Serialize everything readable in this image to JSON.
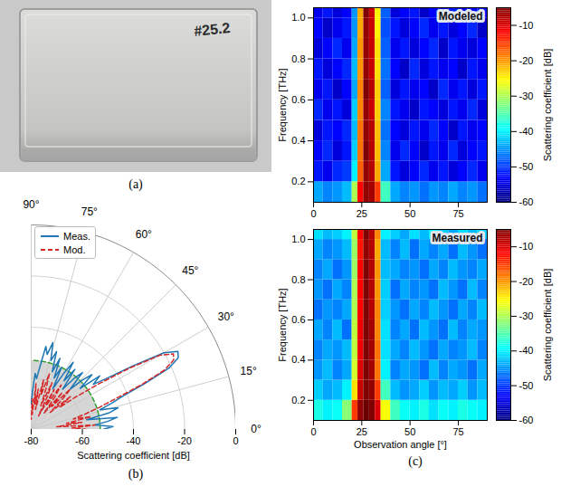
{
  "photo": {
    "label": "#25.2",
    "caption": "(a)"
  },
  "chart_data": [
    {
      "type": "polar",
      "caption": "(b)",
      "xlabel": "Scattering coefficient [dB]",
      "xlim": [
        -80,
        0
      ],
      "xticks": [
        -80,
        -60,
        -40,
        -20,
        0
      ],
      "angle_lim": [
        0,
        90
      ],
      "angle_ticks": [
        {
          "value": 0,
          "label": "0°"
        },
        {
          "value": 15,
          "label": "15°"
        },
        {
          "value": 30,
          "label": "30°"
        },
        {
          "value": 45,
          "label": "45°"
        },
        {
          "value": 60,
          "label": "60°"
        },
        {
          "value": 75,
          "label": "75°"
        },
        {
          "value": 90,
          "label": "90°"
        }
      ],
      "grid": true,
      "legend": "upper left",
      "reference_arc": {
        "value": -53,
        "color": "#2ca02c",
        "line_style": "dashed"
      },
      "angles": [
        0,
        2,
        4,
        6,
        8,
        10,
        12,
        14,
        16,
        18,
        20,
        22,
        24,
        26,
        28,
        30,
        32,
        34,
        36,
        38,
        40,
        42,
        44,
        46,
        48,
        50,
        52,
        54,
        56,
        58,
        60,
        62,
        64,
        66,
        68,
        70,
        72,
        74,
        76,
        78,
        80,
        82,
        84,
        86,
        88,
        90
      ],
      "series": [
        {
          "name": "Meas.",
          "color": "#1f77b4",
          "line_style": "solid",
          "values": [
            -52,
            -48,
            -55,
            -50,
            -46,
            -58,
            -49,
            -45,
            -52,
            -47,
            -42,
            -32,
            -21,
            -16,
            -15,
            -20,
            -33,
            -44,
            -50,
            -46,
            -55,
            -48,
            -52,
            -58,
            -50,
            -54,
            -60,
            -51,
            -57,
            -49,
            -55,
            -62,
            -53,
            -58,
            -50,
            -56,
            -48,
            -52,
            -45,
            -50,
            -47,
            -55,
            -60,
            -58,
            -65,
            -70
          ]
        },
        {
          "name": "Mod.",
          "color": "#d62728",
          "line_style": "dashed",
          "values": [
            -58,
            -64,
            -55,
            -70,
            -60,
            -66,
            -56,
            -63,
            -58,
            -52,
            -45,
            -34,
            -23,
            -18,
            -17,
            -22,
            -35,
            -48,
            -58,
            -66,
            -60,
            -70,
            -63,
            -58,
            -68,
            -61,
            -72,
            -64,
            -59,
            -69,
            -62,
            -74,
            -65,
            -60,
            -70,
            -63,
            -57,
            -66,
            -60,
            -72,
            -64,
            -70,
            -62,
            -74,
            -68,
            -76
          ]
        }
      ]
    },
    {
      "type": "heatmap",
      "title": "Modeled",
      "ylabel": "Frequency [THz]",
      "xlim": [
        0,
        90
      ],
      "xticks": [
        0,
        25,
        50,
        75
      ],
      "ylim": [
        0.1,
        1.05
      ],
      "yticks": [
        0.2,
        0.4,
        0.6,
        0.8,
        {
          "value": 1,
          "label": "1.0"
        }
      ],
      "x_bins": [
        0,
        5,
        10,
        15,
        20,
        23,
        26,
        29,
        32,
        35,
        40,
        45,
        50,
        55,
        60,
        65,
        70,
        75,
        80,
        85,
        90
      ],
      "y_bins": [
        0.1,
        0.2,
        0.3,
        0.4,
        0.5,
        0.6,
        0.7,
        0.8,
        0.9,
        1.0,
        1.05
      ],
      "cells": [
        [
          -44,
          -46,
          -45,
          -43,
          -30,
          -12,
          -6,
          -7,
          -15,
          -36,
          -44,
          -46,
          -45,
          -47,
          -45,
          -46,
          -44,
          -46,
          -45,
          -47
        ],
        [
          -52,
          -54,
          -51,
          -50,
          -40,
          -17,
          -6,
          -8,
          -21,
          -44,
          -52,
          -55,
          -53,
          -51,
          -54,
          -52,
          -55,
          -53,
          -51,
          -54
        ],
        [
          -53,
          -51,
          -55,
          -52,
          -42,
          -18,
          -5,
          -8,
          -22,
          -46,
          -54,
          -51,
          -53,
          -56,
          -52,
          -54,
          -51,
          -55,
          -53,
          -52
        ],
        [
          -55,
          -52,
          -53,
          -51,
          -43,
          -18,
          -6,
          -8,
          -22,
          -47,
          -53,
          -55,
          -52,
          -54,
          -51,
          -53,
          -56,
          -52,
          -54,
          -53
        ],
        [
          -51,
          -54,
          -52,
          -55,
          -42,
          -19,
          -6,
          -9,
          -23,
          -46,
          -52,
          -54,
          -56,
          -52,
          -53,
          -55,
          -52,
          -54,
          -51,
          -55
        ],
        [
          -54,
          -52,
          -56,
          -53,
          -44,
          -19,
          -5,
          -8,
          -23,
          -48,
          -55,
          -52,
          -54,
          -53,
          -56,
          -51,
          -54,
          -52,
          -55,
          -52
        ],
        [
          -52,
          -55,
          -53,
          -51,
          -43,
          -20,
          -6,
          -9,
          -24,
          -47,
          -53,
          -56,
          -51,
          -55,
          -52,
          -54,
          -53,
          -56,
          -52,
          -54
        ],
        [
          -55,
          -53,
          -51,
          -54,
          -44,
          -20,
          -6,
          -9,
          -24,
          -48,
          -54,
          -52,
          -55,
          -53,
          -51,
          -56,
          -52,
          -54,
          -55,
          -53
        ],
        [
          -53,
          -56,
          -54,
          -52,
          -45,
          -21,
          -6,
          -9,
          -25,
          -49,
          -52,
          -55,
          -53,
          -51,
          -54,
          -52,
          -55,
          -53,
          -51,
          -56
        ],
        [
          -54,
          -52,
          -55,
          -53,
          -45,
          -21,
          -5,
          -9,
          -25,
          -48,
          -55,
          -53,
          -52,
          -56,
          -53,
          -55,
          -52,
          -54,
          -53,
          -52
        ]
      ],
      "colorbar": {
        "label": "Scattering coefficient [dB]",
        "range": [
          -60,
          -5
        ],
        "ticks": [
          -10,
          -20,
          -30,
          -40,
          -50,
          -60
        ]
      }
    },
    {
      "type": "heatmap",
      "title": "Measured",
      "caption": "(c)",
      "xlabel": "Observation angle [°]",
      "ylabel": "Frequency [THz]",
      "xlim": [
        0,
        90
      ],
      "xticks": [
        0,
        25,
        50,
        75
      ],
      "ylim": [
        0.1,
        1.05
      ],
      "yticks": [
        0.2,
        0.4,
        0.6,
        0.8,
        {
          "value": 1,
          "label": "1.0"
        }
      ],
      "x_bins": [
        0,
        5,
        10,
        15,
        20,
        23,
        26,
        29,
        32,
        35,
        40,
        45,
        50,
        55,
        60,
        65,
        70,
        75,
        80,
        85,
        90
      ],
      "y_bins": [
        0.1,
        0.2,
        0.3,
        0.4,
        0.5,
        0.6,
        0.7,
        0.8,
        0.9,
        1.0,
        1.05
      ],
      "cells": [
        [
          -38,
          -40,
          -39,
          -32,
          -15,
          -6,
          -4,
          -5,
          -10,
          -26,
          -36,
          -39,
          -40,
          -38,
          -41,
          -39,
          -40,
          -38,
          -39,
          -40
        ],
        [
          -42,
          -44,
          -43,
          -40,
          -24,
          -9,
          -5,
          -6,
          -15,
          -36,
          -43,
          -45,
          -44,
          -42,
          -45,
          -43,
          -44,
          -42,
          -45,
          -43
        ],
        [
          -45,
          -43,
          -46,
          -44,
          -28,
          -10,
          -5,
          -7,
          -18,
          -40,
          -46,
          -44,
          -45,
          -47,
          -43,
          -46,
          -44,
          -45,
          -47,
          -44
        ],
        [
          -46,
          -44,
          -45,
          -43,
          -29,
          -11,
          -5,
          -7,
          -18,
          -41,
          -44,
          -46,
          -43,
          -45,
          -47,
          -44,
          -46,
          -45,
          -43,
          -46
        ],
        [
          -44,
          -46,
          -43,
          -47,
          -29,
          -11,
          -5,
          -7,
          -19,
          -41,
          -46,
          -44,
          -47,
          -43,
          -45,
          -47,
          -43,
          -46,
          -44,
          -45
        ],
        [
          -47,
          -45,
          -46,
          -44,
          -30,
          -12,
          -5,
          -8,
          -19,
          -42,
          -45,
          -47,
          -44,
          -46,
          -43,
          -45,
          -47,
          -44,
          -46,
          -43
        ],
        [
          -45,
          -47,
          -44,
          -46,
          -30,
          -12,
          -5,
          -8,
          -20,
          -42,
          -47,
          -44,
          -46,
          -45,
          -47,
          -43,
          -45,
          -47,
          -43,
          -46
        ],
        [
          -46,
          -44,
          -47,
          -45,
          -31,
          -12,
          -5,
          -8,
          -20,
          -43,
          -44,
          -46,
          -45,
          -47,
          -44,
          -46,
          -43,
          -45,
          -46,
          -44
        ],
        [
          -44,
          -46,
          -45,
          -43,
          -31,
          -13,
          -6,
          -8,
          -21,
          -43,
          -46,
          -43,
          -47,
          -44,
          -46,
          -44,
          -47,
          -43,
          -45,
          -47
        ],
        [
          -41,
          -43,
          -42,
          -40,
          -29,
          -12,
          -5,
          -8,
          -19,
          -40,
          -42,
          -44,
          -41,
          -43,
          -40,
          -42,
          -44,
          -41,
          -43,
          -42
        ]
      ],
      "colorbar": {
        "label": "Scattering coefficient [dB]",
        "range": [
          -60,
          -5
        ],
        "ticks": [
          -10,
          -20,
          -30,
          -40,
          -50,
          -60
        ]
      }
    }
  ]
}
